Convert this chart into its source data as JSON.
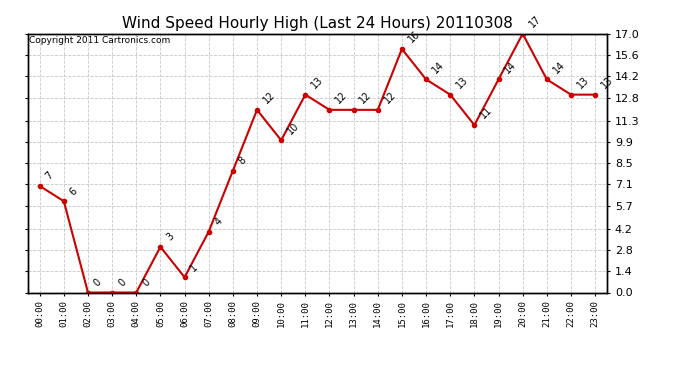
{
  "title": "Wind Speed Hourly High (Last 24 Hours) 20110308",
  "copyright": "Copyright 2011 Cartronics.com",
  "hours": [
    "00:00",
    "01:00",
    "02:00",
    "03:00",
    "04:00",
    "05:00",
    "06:00",
    "07:00",
    "08:00",
    "09:00",
    "10:00",
    "11:00",
    "12:00",
    "13:00",
    "14:00",
    "15:00",
    "16:00",
    "17:00",
    "18:00",
    "19:00",
    "20:00",
    "21:00",
    "22:00",
    "23:00"
  ],
  "values": [
    7,
    6,
    0,
    0,
    0,
    3,
    1,
    4,
    8,
    12,
    10,
    13,
    12,
    12,
    12,
    16,
    14,
    13,
    11,
    14,
    17,
    14,
    13,
    13
  ],
  "line_color": "#cc0000",
  "marker_color": "#cc0000",
  "bg_color": "#ffffff",
  "grid_color": "#c8c8c8",
  "title_fontsize": 11,
  "yticks": [
    0.0,
    1.4,
    2.8,
    4.2,
    5.7,
    7.1,
    8.5,
    9.9,
    11.3,
    12.8,
    14.2,
    15.6,
    17.0
  ],
  "ylim": [
    0.0,
    17.0
  ],
  "annotation_fontsize": 7,
  "copyright_fontsize": 6.5,
  "xlabel_fontsize": 6.5,
  "ylabel_fontsize": 8
}
